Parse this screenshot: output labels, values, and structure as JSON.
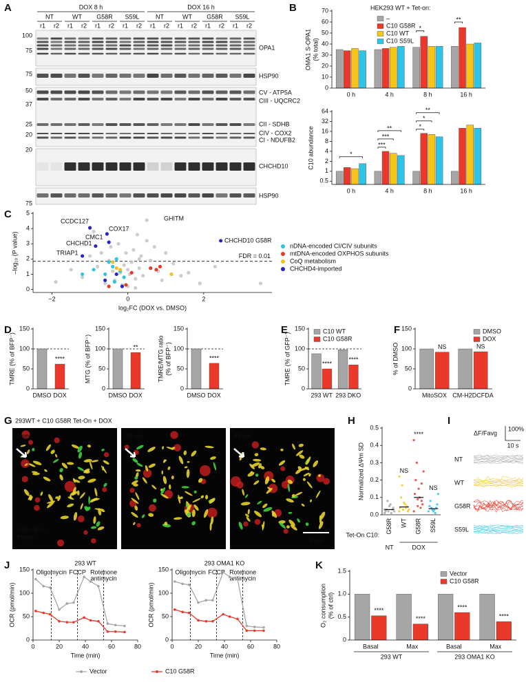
{
  "panel_labels": [
    "A",
    "B",
    "C",
    "D",
    "E",
    "F",
    "G",
    "H",
    "I",
    "J",
    "K"
  ],
  "blot": {
    "groups": [
      "DOX 8 h",
      "DOX 16 h"
    ],
    "conditions": [
      "NT",
      "WT",
      "G58R",
      "S59L"
    ],
    "replicates": [
      "r1",
      "r2"
    ],
    "markers": [
      [
        100,
        75
      ],
      [
        75
      ],
      [
        50,
        37,
        25,
        20
      ],
      [
        20
      ],
      [
        75
      ]
    ],
    "proteins": [
      "OPA1",
      "HSP90",
      "CV - ATP5A",
      "CIII - UQCRC2",
      "CII - SDHB",
      "CIV - COX2",
      "CI - NDUFB2",
      "CHCHD10",
      "HSP90"
    ]
  },
  "images": {
    "title": "293WT + C10 G58R Tet-On + DOX",
    "times": [
      "0 sec",
      "38 sec",
      "48 sec"
    ],
    "channels": [
      "mito-mEm",
      "TMRE"
    ],
    "scale_bar": "5 μm"
  },
  "traces": {
    "label": "ΔF/Favg",
    "scale_y": "100%",
    "scale_x": "10 s",
    "rows": [
      "NT",
      "WT",
      "G58R",
      "S59L"
    ]
  },
  "chart_data": [
    {
      "type": "bar",
      "legend_title": "HEK293 WT + Tet-on:",
      "ylabel": [
        "OMA1 S-OPA1",
        "(% total)"
      ],
      "categories": [
        "0 h",
        "4 h",
        "8 h",
        "16 h"
      ],
      "series": [
        {
          "name": "–",
          "color": "#a6a6a6",
          "values": [
            35,
            35,
            37,
            38
          ]
        },
        {
          "name": "C10 G58R",
          "color": "#e8392b",
          "values": [
            34,
            36,
            47,
            55
          ]
        },
        {
          "name": "C10 WT",
          "color": "#f5c518",
          "values": [
            36,
            37,
            38,
            40
          ]
        },
        {
          "name": "C10 S59L",
          "color": "#2ec4e6",
          "values": [
            34,
            38,
            38,
            41
          ]
        }
      ],
      "ylim": [
        0,
        70
      ],
      "yticks": [
        0,
        10,
        20,
        30,
        40,
        50,
        60,
        70
      ],
      "annotations": [
        "*",
        "**"
      ]
    },
    {
      "type": "bar",
      "log": true,
      "ylabel": [
        "C10 abundance"
      ],
      "categories": [
        "0 h",
        "4 h",
        "8 h",
        "16 h"
      ],
      "series": [
        {
          "color": "#a6a6a6",
          "values": [
            1,
            1,
            1,
            1
          ]
        },
        {
          "color": "#e8392b",
          "values": [
            1.3,
            4,
            14,
            20
          ]
        },
        {
          "color": "#f5c518",
          "values": [
            1.2,
            3.5,
            13,
            25
          ]
        },
        {
          "color": "#2ec4e6",
          "values": [
            1.7,
            3,
            11,
            20
          ]
        }
      ],
      "ylim": [
        0.4,
        64
      ],
      "yticks": [
        0.5,
        1,
        2,
        4,
        8,
        16,
        32,
        64
      ],
      "annotations": [
        "*",
        "***",
        "***",
        "**",
        "*",
        "*",
        "**"
      ]
    },
    {
      "type": "scatter",
      "xlabel": "log₂FC (DOX vs. DMSO)",
      "ylabel": [
        "–log₁₀ (P value)"
      ],
      "xlim": [
        -2.5,
        3.8
      ],
      "xticks": [
        {
          "value": -2,
          "label": "−2"
        },
        0,
        2
      ],
      "ylim": [
        -0.2,
        5
      ],
      "yticks": [
        0,
        1,
        2,
        3,
        4,
        5
      ],
      "threshold": {
        "y": 1.85,
        "label": "FDR = 0.01"
      },
      "point_labels": [
        "CCDC127",
        "COX17",
        "GHITM",
        "CMC1",
        "CHCHD1",
        "TRIAP1",
        "CHCHD10 G58R"
      ],
      "series": [
        {
          "color": "#c8c8c8",
          "x": [
            -1.9,
            -1.5,
            -1.2,
            -1.0,
            -0.8,
            -0.7,
            -0.6,
            -0.5,
            -0.45,
            -0.4,
            -0.35,
            -0.3,
            -0.25,
            -0.2,
            -0.15,
            -0.1,
            -0.05,
            0,
            0.05,
            0.1,
            0.15,
            0.2,
            0.25,
            0.3,
            0.35,
            0.4,
            0.5,
            0.6,
            0.7,
            0.8,
            0.9,
            1.0,
            1.2,
            1.4,
            1.6,
            1.9,
            2.3,
            0.5,
            0.3,
            -0.9,
            0.0,
            0.2,
            3.5
          ],
          "y": [
            0.5,
            1.3,
            0.8,
            2.2,
            1.5,
            2.4,
            0.4,
            1.9,
            2.8,
            1.2,
            0.6,
            2.0,
            3.0,
            1.1,
            0.3,
            1.6,
            2.4,
            0.2,
            1.0,
            1.8,
            2.6,
            0.7,
            3.6,
            1.4,
            2.2,
            0.9,
            4.55,
            1.9,
            2.8,
            1.2,
            0.6,
            2.4,
            1.7,
            0.9,
            1.1,
            0.4,
            1.5,
            3.2,
            2.0,
            3.8,
            1.3,
            0.1,
            0.4
          ]
        },
        {
          "name": "nDNA-encoded CI/CIV subunits",
          "color": "#2ec4e6",
          "x": [
            -0.9,
            -0.6,
            -0.5,
            -0.4,
            -0.3,
            -0.2,
            -0.1,
            -0.35,
            -1.2
          ],
          "y": [
            1.3,
            1.0,
            1.8,
            1.5,
            2.0,
            1.2,
            0.8,
            0.5,
            1.0
          ]
        },
        {
          "name": "mtDNA-encoded OXPHOS subunits",
          "color": "#e8392b",
          "x": [
            0.6,
            0.75,
            0.85,
            -0.05,
            -0.5,
            0.1
          ],
          "y": [
            1.4,
            1.3,
            1.5,
            0.3,
            0.2,
            1.1
          ]
        },
        {
          "name": "CoQ metabolism",
          "color": "#f0c020",
          "x": [
            -0.4,
            -0.2,
            1.15,
            -0.3
          ],
          "y": [
            1.8,
            1.3,
            1.0,
            1.4
          ]
        },
        {
          "name": "CHCHD4-imported",
          "color": "#2424c8",
          "x": [
            -1.0,
            -0.55,
            -0.5,
            -0.85,
            -1.2,
            2.45,
            -0.3,
            -0.15,
            -0.6
          ],
          "y": [
            4.05,
            3.65,
            3.1,
            2.85,
            2.2,
            3.2,
            1.0,
            0.2,
            0.6
          ]
        }
      ]
    },
    {
      "type": "bar",
      "ylabel": [
        "TMRE (% of BFP⁻)"
      ],
      "categories": [
        "DMSO",
        "DOX"
      ],
      "values": [
        100,
        62
      ],
      "colors": [
        "#a6a6a6",
        "#e8392b"
      ],
      "ylim": [
        0,
        150
      ],
      "yticks": [
        0,
        50,
        100,
        150
      ],
      "hline": 100,
      "annotations": [
        "****"
      ]
    },
    {
      "type": "bar",
      "ylabel": [
        "MTG (% of BFP⁻)"
      ],
      "categories": [
        "DMSO",
        "DOX"
      ],
      "values": [
        100,
        91
      ],
      "colors": [
        "#a6a6a6",
        "#e8392b"
      ],
      "ylim": [
        0,
        150
      ],
      "yticks": [
        0,
        50,
        100,
        150
      ],
      "hline": 100,
      "annotations": [
        "**"
      ]
    },
    {
      "type": "bar",
      "ylabel": [
        "TMRE/MTG ratio",
        "(% of BFP⁻)"
      ],
      "categories": [
        "DMSO",
        "DOX"
      ],
      "values": [
        100,
        64
      ],
      "colors": [
        "#a6a6a6",
        "#e8392b"
      ],
      "ylim": [
        0,
        150
      ],
      "yticks": [
        0,
        50,
        100,
        150
      ],
      "hline": 100,
      "annotations": [
        "****"
      ]
    },
    {
      "type": "bar",
      "ylabel": [
        "TMRE (% of GFP⁻)"
      ],
      "categories": [
        "293 WT",
        "293 DKO"
      ],
      "series": [
        {
          "name": "C10 WT",
          "color": "#a6a6a6",
          "values": [
            88,
            98
          ]
        },
        {
          "name": "C10 G58R",
          "color": "#e8392b",
          "values": [
            50,
            60
          ]
        }
      ],
      "ylim": [
        0,
        150
      ],
      "yticks": [
        0,
        50,
        100,
        150
      ],
      "hline": 100,
      "annotations": [
        "****",
        "****"
      ]
    },
    {
      "type": "bar",
      "ylabel": [
        "% of DMSO"
      ],
      "categories": [
        "MitoSOX",
        "CM-H2DCFDA"
      ],
      "series": [
        {
          "name": "DMSO",
          "color": "#a6a6a6",
          "values": [
            100,
            100
          ]
        },
        {
          "name": "DOX",
          "color": "#e8392b",
          "values": [
            92,
            93
          ]
        }
      ],
      "ylim": [
        0,
        150
      ],
      "yticks": [
        0,
        50,
        100,
        150
      ],
      "annotations": [
        "NS",
        "NS"
      ]
    },
    {
      "type": "strip",
      "ylabel": [
        "Normalized ΔΨm SD"
      ],
      "categories": [
        "G58R",
        "WT",
        "G58R",
        "S59L"
      ],
      "groups": [
        "NT",
        "DOX"
      ],
      "axis_title": "Tet-On C10:",
      "colors": [
        "#a6a6a6",
        "#f5c518",
        "#e8392b",
        "#2ec4e6"
      ],
      "points": [
        [
          0.01,
          0.02,
          0.03,
          0.02,
          0.05,
          0.04,
          0.03,
          0.06,
          0.02,
          0.08,
          0.01,
          0.03
        ],
        [
          0.02,
          0.03,
          0.05,
          0.04,
          0.07,
          0.02,
          0.1,
          0.06,
          0.03,
          0.17,
          0.04,
          0.22
        ],
        [
          0.02,
          0.05,
          0.08,
          0.12,
          0.15,
          0.06,
          0.2,
          0.1,
          0.25,
          0.3,
          0.04,
          0.43,
          0.09,
          0.18
        ],
        [
          0.02,
          0.03,
          0.04,
          0.05,
          0.02,
          0.06,
          0.08,
          0.03,
          0.12,
          0.04,
          0.01
        ]
      ],
      "means": [
        0.03,
        0.045,
        0.1,
        0.035
      ],
      "ylim": [
        0,
        0.5
      ],
      "yticks": [
        {
          "value": 0,
          "label": "0.0"
        },
        0.1,
        0.2,
        0.3,
        0.4,
        0.5
      ],
      "annotations": [
        "NS",
        "****",
        "NS"
      ]
    },
    {
      "type": "line",
      "title": "293 WT",
      "xlabel": "Time (min)",
      "ylabel": [
        "OCR (pmol/min)"
      ],
      "x": [
        2,
        8,
        13,
        20,
        26,
        31,
        39,
        44,
        50,
        57,
        63,
        70
      ],
      "series": [
        {
          "name": "Vector",
          "color": "#a6a6a6",
          "values": [
            130,
            115,
            112,
            65,
            78,
            80,
            135,
            125,
            115,
            35,
            32,
            30
          ]
        },
        {
          "name": "C10 G58R",
          "color": "#e8392b",
          "values": [
            62,
            58,
            55,
            40,
            38,
            38,
            48,
            42,
            40,
            18,
            18,
            17
          ]
        }
      ],
      "xlim": [
        0,
        80
      ],
      "xticks": [
        0,
        20,
        40,
        60,
        80
      ],
      "ylim": [
        0,
        150
      ],
      "yticks": [
        0,
        50,
        100,
        150
      ],
      "injections": {
        "x": [
          14,
          34,
          54
        ],
        "labels": [
          [
            "Oligomycin"
          ],
          [
            "FCCP"
          ],
          [
            "Rotenone",
            "antimycin"
          ]
        ]
      }
    },
    {
      "type": "line",
      "title": "293 OMA1 KO",
      "xlabel": "Time (min)",
      "ylabel": [
        "OCR (pmol/min)"
      ],
      "x": [
        2,
        8,
        13,
        20,
        26,
        31,
        39,
        44,
        50,
        57,
        63,
        70
      ],
      "series": [
        {
          "color": "#a6a6a6",
          "values": [
            125,
            120,
            118,
            80,
            85,
            85,
            145,
            135,
            130,
            30,
            28,
            27
          ]
        },
        {
          "color": "#e8392b",
          "values": [
            65,
            60,
            58,
            42,
            40,
            40,
            55,
            50,
            45,
            20,
            20,
            20
          ]
        }
      ],
      "xlim": [
        0,
        80
      ],
      "xticks": [
        0,
        20,
        40,
        60,
        80
      ],
      "ylim": [
        0,
        150
      ],
      "yticks": [
        0,
        50,
        100,
        150
      ],
      "injections": {
        "x": [
          14,
          34,
          54
        ],
        "labels": [
          [
            "Oligomycin"
          ],
          [
            "FCCP"
          ],
          [
            "Rotenone",
            "antimycin"
          ]
        ]
      }
    },
    {
      "type": "bar",
      "ylabel": [
        "O₂ consumption",
        "(% of ctrl)"
      ],
      "categories": [
        "Basal",
        "Max",
        "Basal",
        "Max"
      ],
      "groups": [
        "293 WT",
        "293 OMA1 KO"
      ],
      "series": [
        {
          "name": "Vector",
          "color": "#a6a6a6",
          "values": [
            1,
            1,
            1,
            1
          ]
        },
        {
          "name": "C10 G58R",
          "color": "#e8392b",
          "values": [
            0.53,
            0.35,
            0.6,
            0.4
          ]
        }
      ],
      "ylim": [
        0,
        1.5
      ],
      "yticks": [
        0,
        0.5,
        {
          "value": 1,
          "label": "1.0"
        },
        1.5
      ],
      "annotations": [
        "****",
        "****",
        "****",
        "****"
      ]
    }
  ]
}
